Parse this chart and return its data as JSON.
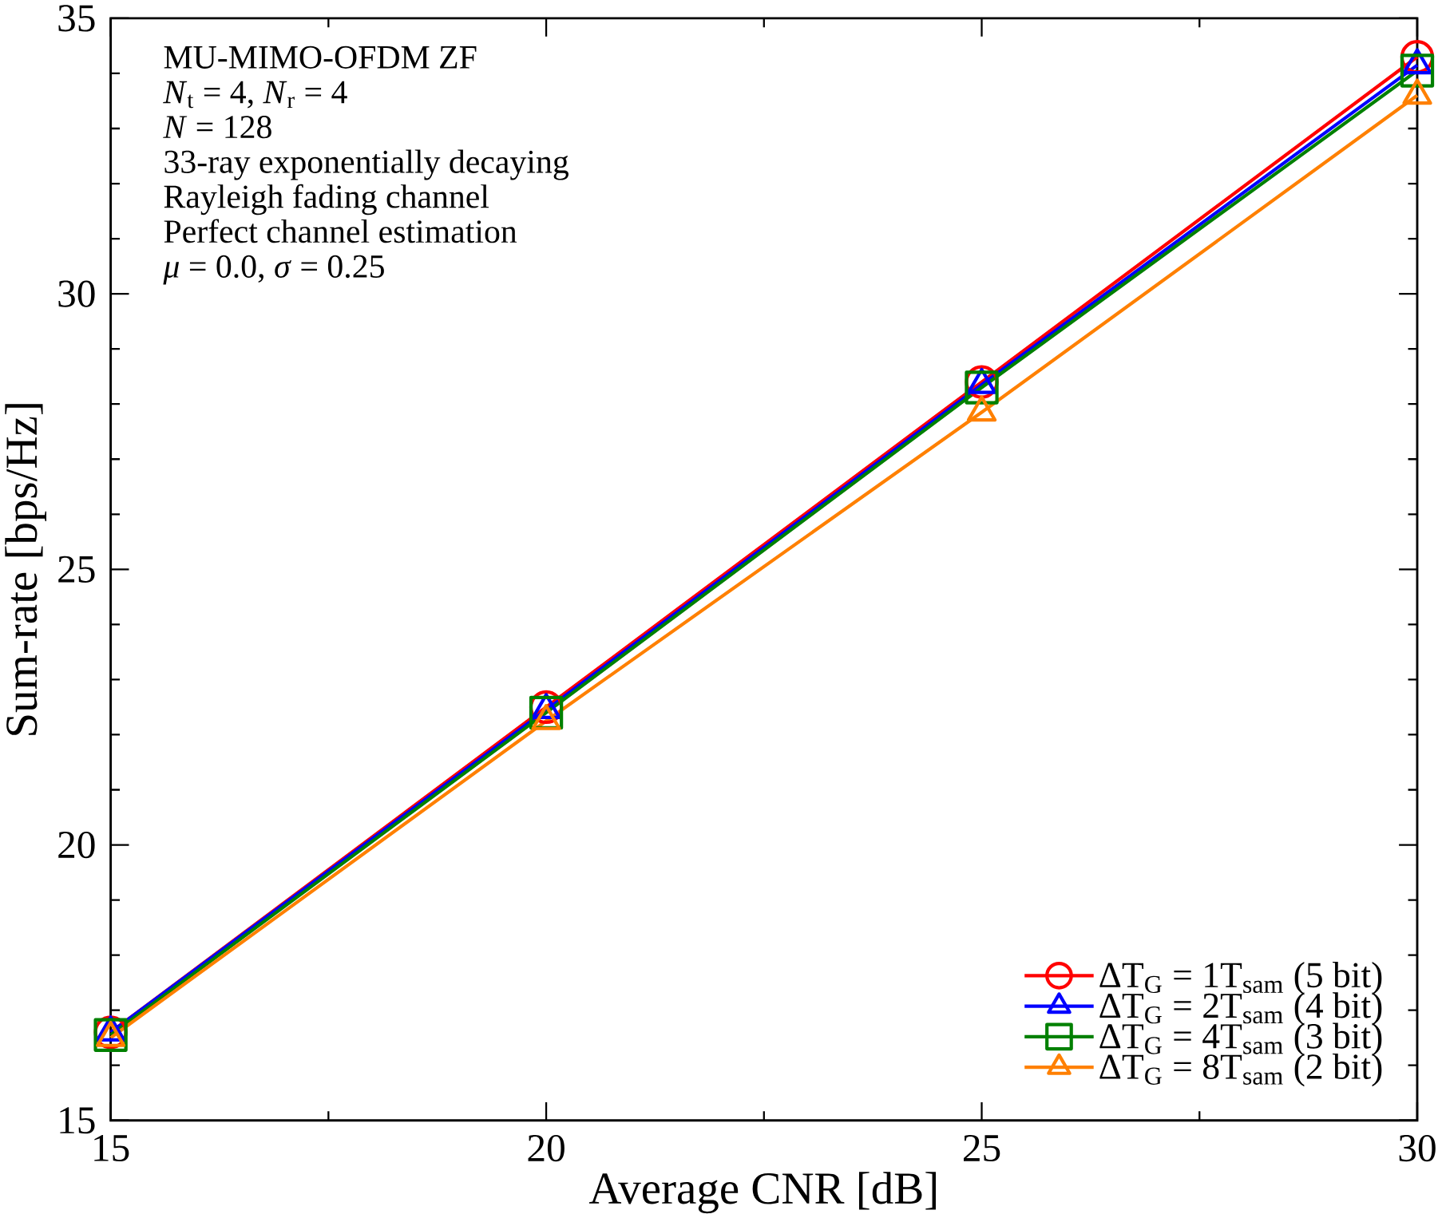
{
  "chart_data": {
    "type": "line",
    "xlabel": "Average CNR [dB]",
    "ylabel": "Sum-rate [bps/Hz]",
    "x": [
      15,
      20,
      25,
      30
    ],
    "xlim": [
      15,
      30
    ],
    "xticks": [
      15,
      20,
      25,
      30
    ],
    "ylim": [
      15,
      35
    ],
    "yticks": [
      15,
      20,
      25,
      30,
      35
    ],
    "grid": false,
    "legend": "bottom right",
    "line_style": "solid",
    "annotations": [
      "MU-MIMO-OFDM ZF",
      "*N*$_{t}$ = 4, *N*$_{r}$ = 4",
      "*N* = 128",
      "33-ray exponentially decaying",
      "Rayleigh fading channel",
      "Perfect channel estimation",
      "*μ* = 0.0, *σ* = 0.25"
    ],
    "series": [
      {
        "name": "ΔT$_{G}$ = 1T$_{sam}$ (5 bit)",
        "color": "#ff0000",
        "marker": "circle",
        "values": [
          16.6,
          22.5,
          28.4,
          34.3
        ]
      },
      {
        "name": "ΔT$_{G}$ = 2T$_{sam}$ (4 bit)",
        "color": "#0000ff",
        "marker": "triangle",
        "values": [
          16.6,
          22.45,
          28.35,
          34.15
        ]
      },
      {
        "name": "ΔT$_{G}$ = 4T$_{sam}$ (3 bit)",
        "color": "#008000",
        "marker": "square",
        "values": [
          16.55,
          22.4,
          28.3,
          34.05
        ]
      },
      {
        "name": "ΔT$_{G}$ = 8T$_{sam}$ (2 bit)",
        "color": "#ff8000",
        "marker": "triangle",
        "values": [
          16.5,
          22.25,
          27.85,
          33.6
        ]
      }
    ]
  }
}
